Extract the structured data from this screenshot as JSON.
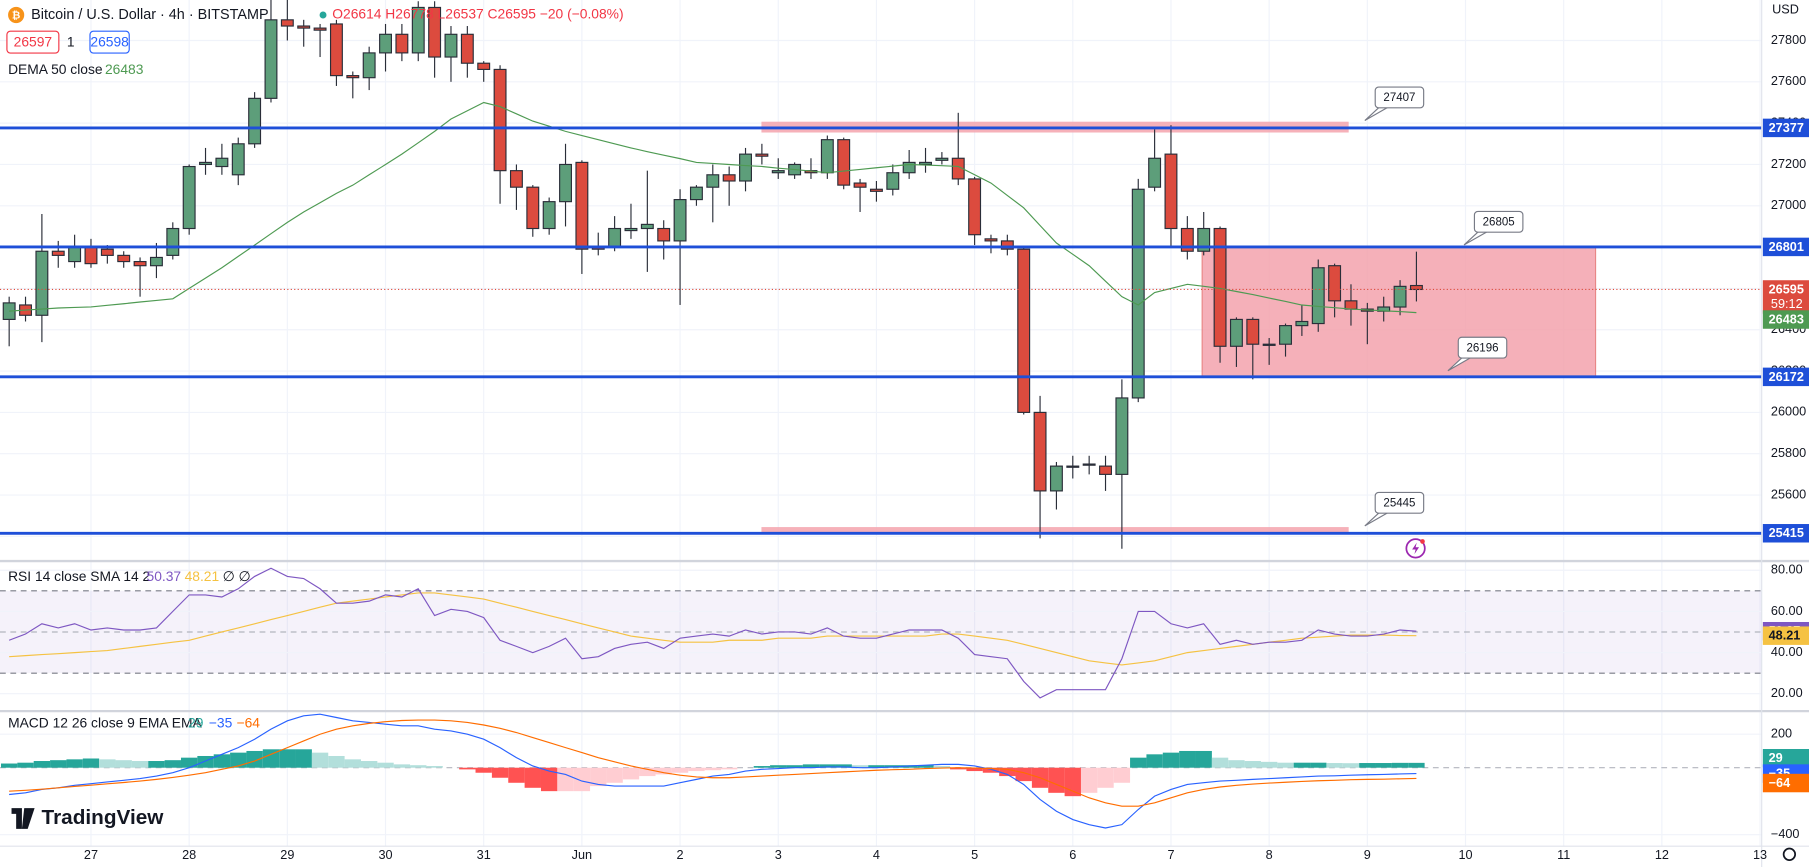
{
  "logo": "TradingView",
  "chart_data": [
    {
      "type": "candlestick",
      "title": "Bitcoin / U.S. Dollar · 4h · BITSTAMP",
      "ohlc_text": "O26614 H26778 L26537 C26595 −20 (−0.08%)",
      "bid": 26597,
      "spread": 1,
      "ask": 26598,
      "currency": "USD",
      "countdown": "59:12",
      "up_color": "#5d9e7a",
      "down_color": "#dc4b3e",
      "open": [
        26450,
        26520,
        26470,
        26780,
        26730,
        26800,
        26790,
        26760,
        26730,
        26710,
        26760,
        26890,
        27200,
        27190,
        27150,
        27300,
        27520,
        27900,
        27870,
        27860,
        27880,
        27630,
        27620,
        27740,
        27830,
        27740,
        27960,
        27720,
        27830,
        27690,
        27660,
        27170,
        27090,
        26890,
        27020,
        27210,
        26800,
        26800,
        26880,
        26890,
        26890,
        26830,
        27030,
        27090,
        27150,
        27120,
        27250,
        27160,
        27150,
        27170,
        27160,
        27320,
        27110,
        27080,
        27080,
        27160,
        27200,
        27220,
        27230,
        27130,
        26840,
        26830,
        26790,
        26000,
        25620,
        25740,
        25750,
        25740,
        25700,
        26070,
        27090,
        27250,
        26890,
        26780,
        26890,
        26320,
        26450,
        26330,
        26330,
        26420,
        26430,
        26710,
        26540,
        26500,
        26490,
        26510,
        26614
      ],
      "high": [
        26560,
        26560,
        26960,
        26830,
        26860,
        26840,
        26810,
        26780,
        26750,
        26820,
        26920,
        27200,
        27280,
        27300,
        27330,
        27550,
        28000,
        28000,
        27900,
        27880,
        27900,
        27650,
        27770,
        27880,
        27880,
        27990,
        27990,
        27870,
        27870,
        27700,
        27680,
        27200,
        27100,
        27040,
        27300,
        27220,
        26870,
        26950,
        27010,
        27170,
        26930,
        27080,
        27100,
        27200,
        27190,
        27280,
        27300,
        27230,
        27210,
        27230,
        27340,
        27330,
        27130,
        27120,
        27200,
        27270,
        27280,
        27260,
        27450,
        27140,
        26860,
        26860,
        26800,
        26080,
        25760,
        25790,
        25790,
        25790,
        26160,
        27130,
        27370,
        27390,
        26950,
        26970,
        26900,
        26460,
        26460,
        26360,
        26430,
        26520,
        26740,
        26720,
        26620,
        26530,
        26560,
        26640,
        26778
      ],
      "low": [
        26320,
        26440,
        26340,
        26700,
        26700,
        26700,
        26720,
        26700,
        26560,
        26650,
        26740,
        26860,
        27150,
        27150,
        27100,
        27280,
        27500,
        27800,
        27770,
        27720,
        27580,
        27520,
        27560,
        27650,
        27700,
        27700,
        27620,
        27600,
        27620,
        27600,
        27010,
        26980,
        26850,
        26860,
        26900,
        26670,
        26760,
        26780,
        26840,
        26680,
        26740,
        26520,
        27000,
        26920,
        27000,
        27070,
        27200,
        27130,
        27130,
        27130,
        27130,
        27080,
        26970,
        27020,
        27050,
        27130,
        27160,
        27200,
        27100,
        26810,
        26770,
        26760,
        25990,
        25390,
        25530,
        25680,
        25700,
        25620,
        25340,
        26050,
        27070,
        26800,
        26740,
        26760,
        26240,
        26220,
        26160,
        26230,
        26270,
        26370,
        26390,
        26460,
        26420,
        26330,
        26440,
        26470,
        26537
      ],
      "close": [
        26530,
        26470,
        26780,
        26760,
        26800,
        26720,
        26760,
        26730,
        26710,
        26750,
        26890,
        27190,
        27210,
        27230,
        27300,
        27520,
        27900,
        27870,
        27860,
        27850,
        27630,
        27620,
        27740,
        27830,
        27740,
        27960,
        27720,
        27830,
        27690,
        27660,
        27170,
        27090,
        26890,
        27020,
        27200,
        26790,
        26790,
        26890,
        26890,
        26910,
        26830,
        27030,
        27090,
        27150,
        27120,
        27250,
        27240,
        27170,
        27200,
        27160,
        27320,
        27100,
        27090,
        27070,
        27160,
        27210,
        27210,
        27230,
        27130,
        26860,
        26830,
        26790,
        26000,
        25620,
        25740,
        25740,
        25750,
        25700,
        26070,
        27080,
        27230,
        26890,
        26780,
        26890,
        26320,
        26450,
        26330,
        26330,
        26420,
        26440,
        26700,
        26540,
        26500,
        26490,
        26510,
        26610,
        26595
      ],
      "series": [
        {
          "name": "DEMA 50 close",
          "color": "#4e9a52",
          "values": [
            26490,
            26495,
            26500,
            26505,
            26508,
            26510,
            26518,
            26526,
            26534,
            26542,
            26550,
            26600,
            26650,
            26700,
            26755,
            26810,
            26865,
            26920,
            26970,
            27015,
            27060,
            27100,
            27150,
            27200,
            27250,
            27305,
            27360,
            27420,
            27460,
            27500,
            27480,
            27445,
            27410,
            27385,
            27360,
            27340,
            27320,
            27300,
            27280,
            27262,
            27245,
            27228,
            27210,
            27205,
            27200,
            27195,
            27190,
            27182,
            27175,
            27168,
            27160,
            27168,
            27176,
            27184,
            27192,
            27200,
            27197,
            27194,
            27190,
            27150,
            27110,
            27050,
            26990,
            26905,
            26820,
            26765,
            26710,
            26635,
            26560,
            26520,
            26580,
            26600,
            26620,
            26610,
            26600,
            26585,
            26570,
            26553,
            26537,
            26520,
            26513,
            26507,
            26500,
            26496,
            26492,
            26488,
            26483
          ]
        }
      ],
      "levels": [
        27377,
        26801,
        26172,
        25415
      ],
      "level_color": "#1e4fd8",
      "zone_color": "#f4a3ad",
      "callouts": [
        27407,
        26805,
        26196,
        25445
      ],
      "xlim": [
        -0.56,
        107.1
      ],
      "xticks": [
        {
          "value": 5,
          "label": "27"
        },
        {
          "value": 11,
          "label": "28"
        },
        {
          "value": 17,
          "label": "29"
        },
        {
          "value": 23,
          "label": "30"
        },
        {
          "value": 29,
          "label": "31"
        },
        {
          "value": 35,
          "label": "Jun"
        },
        {
          "value": 41,
          "label": "2"
        },
        {
          "value": 47,
          "label": "3"
        },
        {
          "value": 53,
          "label": "4"
        },
        {
          "value": 59,
          "label": "5"
        },
        {
          "value": 65,
          "label": "6"
        },
        {
          "value": 71,
          "label": "7"
        },
        {
          "value": 77,
          "label": "8"
        },
        {
          "value": 83,
          "label": "9"
        },
        {
          "value": 89,
          "label": "10"
        },
        {
          "value": 95,
          "label": "11"
        },
        {
          "value": 101,
          "label": "12"
        },
        {
          "value": 107,
          "label": "13"
        }
      ],
      "ylim": [
        25286,
        27996
      ],
      "yticks": [
        27800,
        27600,
        27400,
        27200,
        27000,
        26800,
        26600,
        26400,
        26200,
        26000,
        25800,
        25600,
        25400
      ]
    },
    {
      "type": "line",
      "title": "RSI 14 close SMA 14 2",
      "extra_text": "∅ ∅",
      "band": [
        30,
        70
      ],
      "midline": 50,
      "band_color": "#7e57c2",
      "series": [
        {
          "color": "#7e57c2",
          "values": [
            46,
            49,
            54,
            52,
            54,
            51,
            52,
            51,
            51,
            52,
            60,
            68,
            68,
            67,
            71,
            77,
            81,
            77,
            76,
            71,
            64,
            64,
            65,
            68,
            67,
            71,
            58,
            61,
            60,
            57,
            46,
            43,
            40,
            43,
            47,
            37,
            38,
            42,
            44,
            45,
            42,
            47,
            48,
            49,
            48,
            51,
            49,
            50,
            50,
            49,
            52,
            48,
            47,
            47,
            49,
            51,
            51,
            51,
            47,
            39,
            38,
            37,
            26,
            18,
            22,
            22,
            22,
            22,
            37,
            60,
            60,
            54,
            52,
            54,
            44,
            46,
            44,
            45,
            45,
            46,
            51,
            49,
            48,
            48,
            49,
            51,
            50.37
          ]
        },
        {
          "color": "#f5c242",
          "values": [
            38,
            38.5,
            39,
            39.5,
            40,
            40.5,
            41,
            42,
            43,
            44,
            45,
            46,
            48,
            50,
            52,
            54,
            56,
            58,
            60,
            62,
            64,
            65,
            66,
            67,
            68,
            69,
            69,
            68,
            67,
            66,
            64,
            62,
            60,
            58,
            56,
            54,
            52,
            50,
            48,
            47,
            46,
            45,
            45,
            45,
            46,
            46,
            46,
            47,
            47,
            47,
            48,
            48,
            48,
            48,
            48,
            48,
            48,
            49,
            49,
            48,
            47,
            46,
            44,
            42,
            40,
            38,
            36,
            35,
            34,
            35,
            36,
            38,
            40,
            41,
            42,
            43,
            44,
            45,
            46,
            47,
            47.5,
            48,
            48.5,
            48.5,
            48.5,
            48.3,
            48.21
          ]
        }
      ],
      "ylim": [
        12.1,
        83.9
      ],
      "yticks": [
        {
          "value": 80,
          "label": "80.00"
        },
        {
          "value": 60,
          "label": "60.00"
        },
        {
          "value": 40,
          "label": "40.00"
        },
        {
          "value": 20,
          "label": "20.00"
        }
      ]
    },
    {
      "type": "macd",
      "title": "MACD 12 26 close 9 EMA EMA",
      "histogram": {
        "colors": [
          "#26a69a",
          "#b2dfdb",
          "#ffcdd2",
          "#ff5252"
        ],
        "values": [
          25,
          30,
          40,
          45,
          50,
          55,
          50,
          45,
          40,
          40,
          45,
          60,
          70,
          80,
          90,
          100,
          110,
          110,
          110,
          90,
          70,
          50,
          40,
          30,
          20,
          15,
          10,
          0,
          -10,
          -30,
          -60,
          -90,
          -120,
          -140,
          -140,
          -140,
          -110,
          -90,
          -70,
          -50,
          -40,
          -30,
          -20,
          -15,
          -10,
          0,
          10,
          15,
          15,
          20,
          20,
          20,
          15,
          15,
          15,
          15,
          15,
          10,
          -10,
          -20,
          -30,
          -50,
          -80,
          -120,
          -150,
          -170,
          -150,
          -120,
          -90,
          60,
          80,
          90,
          100,
          100,
          60,
          45,
          40,
          35,
          30,
          30,
          30,
          28,
          27,
          28,
          28,
          29,
          29
        ]
      },
      "series": [
        {
          "color": "#2962ff",
          "values": [
            -160,
            -150,
            -130,
            -120,
            -105,
            -95,
            -85,
            -75,
            -65,
            -50,
            -30,
            0,
            40,
            80,
            120,
            170,
            230,
            280,
            310,
            320,
            300,
            280,
            270,
            260,
            250,
            250,
            230,
            220,
            200,
            170,
            120,
            60,
            10,
            -20,
            -40,
            -80,
            -100,
            -110,
            -110,
            -110,
            -110,
            -90,
            -70,
            -50,
            -40,
            -20,
            -10,
            -5,
            0,
            0,
            5,
            5,
            0,
            0,
            5,
            10,
            15,
            20,
            20,
            10,
            -10,
            -40,
            -100,
            -190,
            -260,
            -310,
            -340,
            -360,
            -340,
            -250,
            -170,
            -130,
            -100,
            -90,
            -80,
            -75,
            -70,
            -65,
            -60,
            -55,
            -50,
            -48,
            -45,
            -42,
            -40,
            -37,
            -35
          ],
          "last": {
            "value": -35,
            "label": "−35"
          }
        },
        {
          "color": "#ff6d00",
          "values": [
            -140,
            -135,
            -128,
            -120,
            -112,
            -104,
            -96,
            -88,
            -80,
            -70,
            -58,
            -45,
            -30,
            -10,
            10,
            40,
            80,
            120,
            160,
            200,
            230,
            250,
            265,
            275,
            282,
            285,
            285,
            280,
            270,
            255,
            235,
            210,
            180,
            150,
            120,
            90,
            60,
            35,
            10,
            -10,
            -30,
            -45,
            -55,
            -60,
            -60,
            -55,
            -50,
            -45,
            -40,
            -35,
            -30,
            -25,
            -20,
            -15,
            -12,
            -10,
            -5,
            -2,
            0,
            -2,
            -5,
            -10,
            -30,
            -60,
            -100,
            -140,
            -180,
            -210,
            -230,
            -230,
            -210,
            -180,
            -150,
            -130,
            -115,
            -105,
            -98,
            -92,
            -87,
            -82,
            -78,
            -75,
            -72,
            -70,
            -68,
            -66,
            -64
          ],
          "last": {
            "value": -64,
            "label": "−64"
          }
        }
      ],
      "ylim": [
        -469,
        331
      ],
      "yticks": [
        200,
        {
          "value": -400,
          "label": "−400"
        }
      ]
    }
  ]
}
